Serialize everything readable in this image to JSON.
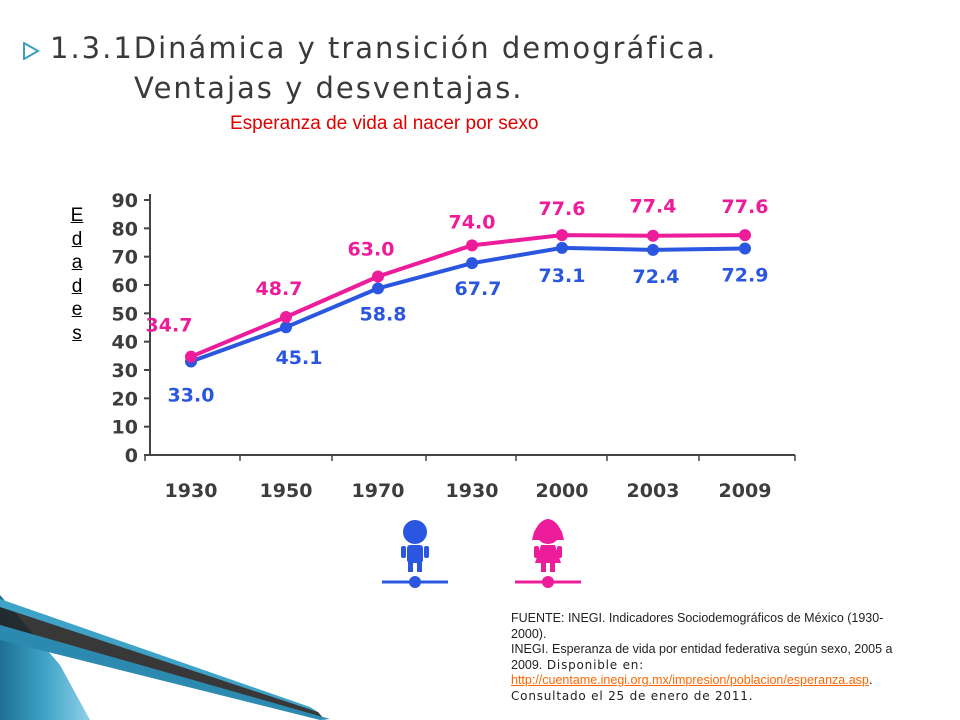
{
  "slide": {
    "title_line1": "1.3.1Dinámica y transición demográfica.",
    "title_line2": "Ventajas y desventajas.",
    "subtitle": "Esperanza de vida al nacer por sexo",
    "vertical_label": [
      "E",
      "d",
      "a",
      "d",
      "e",
      "s"
    ],
    "source": {
      "line1": "FUENTE: INEGI. Indicadores Sociodemográficos de México (1930-2000).",
      "line2": "INEGI. Esperanza de vida por entidad federativa según sexo, 2005 a 2009.",
      "line2_tail": " Disponible en:",
      "link": "http://cuentame.inegi.org.mx/impresion/poblacion/esperanza.asp",
      "link_part1": "http://cuentame.inegi.org.mx/impresion/poblacion/esperanza.a",
      "link_part2": "sp",
      "tail": ". Consultado el 25 de enero de 2011."
    }
  },
  "chart_data": {
    "type": "line",
    "categories": [
      "1930",
      "1950",
      "1970",
      "1930",
      "2000",
      "2003",
      "2009"
    ],
    "ylim": [
      0,
      90
    ],
    "yticks": [
      "0",
      "10",
      "20",
      "30",
      "40",
      "50",
      "60",
      "70",
      "80",
      "90"
    ],
    "grid": false,
    "series": [
      {
        "values": [
          34.7,
          48.7,
          63.0,
          74.0,
          77.6,
          77.4,
          77.6
        ],
        "labels": [
          "34.7",
          "48.7",
          "63.0",
          "74.0",
          "77.6",
          "77.4",
          "77.6"
        ],
        "color": "#ec1c9a"
      },
      {
        "values": [
          33.0,
          45.1,
          58.8,
          67.7,
          73.1,
          72.4,
          72.9
        ],
        "labels": [
          "33.0",
          "45.1",
          "58.8",
          "67.7",
          "73.1",
          "72.4",
          "72.9"
        ],
        "color": "#2b56e0"
      }
    ],
    "legend": [
      {
        "icon": "boy-figure-icon",
        "color": "#2b56e0"
      },
      {
        "icon": "girl-figure-icon",
        "color": "#ec1c9a"
      }
    ]
  }
}
